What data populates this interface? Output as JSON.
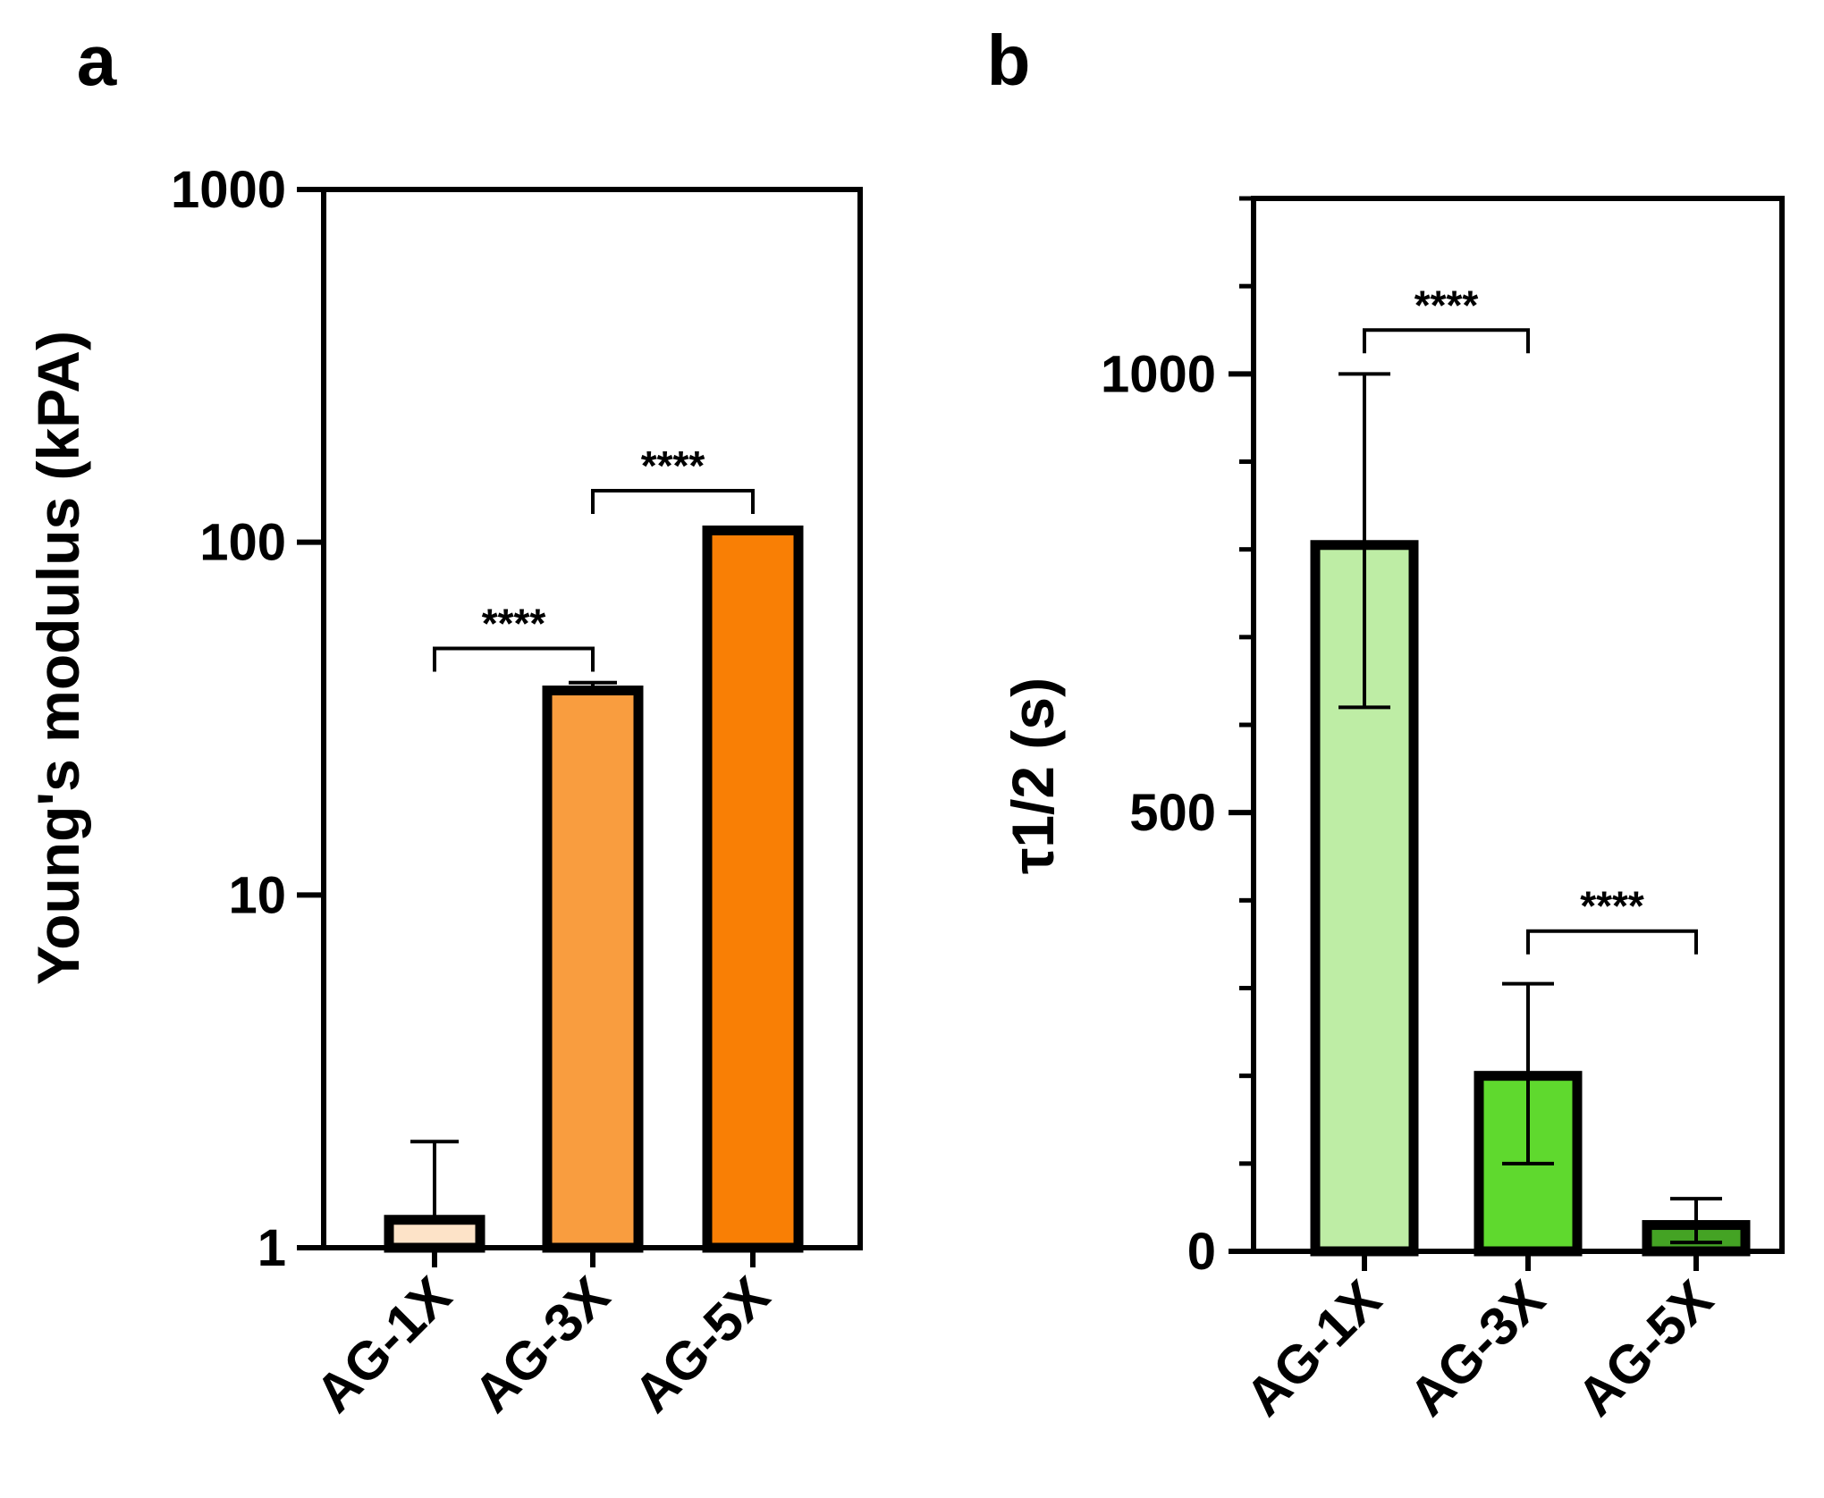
{
  "chart_data": [
    {
      "panel": "a",
      "type": "bar",
      "yscale": "log",
      "ylabel": "Young's modulus (kPA)",
      "ylim": [
        1,
        1000
      ],
      "yticks": [
        "1",
        "10",
        "100",
        "1000"
      ],
      "categories": [
        "AG-1X",
        "AG-3X",
        "AG-5X"
      ],
      "values": [
        1.2,
        38,
        108
      ],
      "error_upper": [
        2.0,
        40,
        110
      ],
      "error_lower": [
        null,
        null,
        null
      ],
      "fill_colors": [
        "#FDE3C8",
        "#F99D3F",
        "#F97F05"
      ],
      "significance": [
        {
          "from": 0,
          "to": 1,
          "label": "****",
          "level": 50
        },
        {
          "from": 1,
          "to": 2,
          "label": "****",
          "level": 140
        }
      ]
    },
    {
      "panel": "b",
      "type": "bar",
      "yscale": "linear",
      "ylabel": "τ1/2 (s)",
      "ylim": [
        0,
        1200
      ],
      "yticks": [
        "0",
        "500",
        "1000"
      ],
      "minor_tick_step": 100,
      "categories": [
        "AG-1X",
        "AG-3X",
        "AG-5X"
      ],
      "values": [
        805,
        200,
        30
      ],
      "error_upper": [
        1000,
        305,
        60
      ],
      "error_lower": [
        620,
        100,
        10
      ],
      "fill_colors": [
        "#BEEDA5",
        "#5FD92E",
        "#44A324"
      ],
      "significance": [
        {
          "from": 0,
          "to": 1,
          "label": "****",
          "level": 1050
        },
        {
          "from": 1,
          "to": 2,
          "label": "****",
          "level": 365
        }
      ]
    }
  ]
}
